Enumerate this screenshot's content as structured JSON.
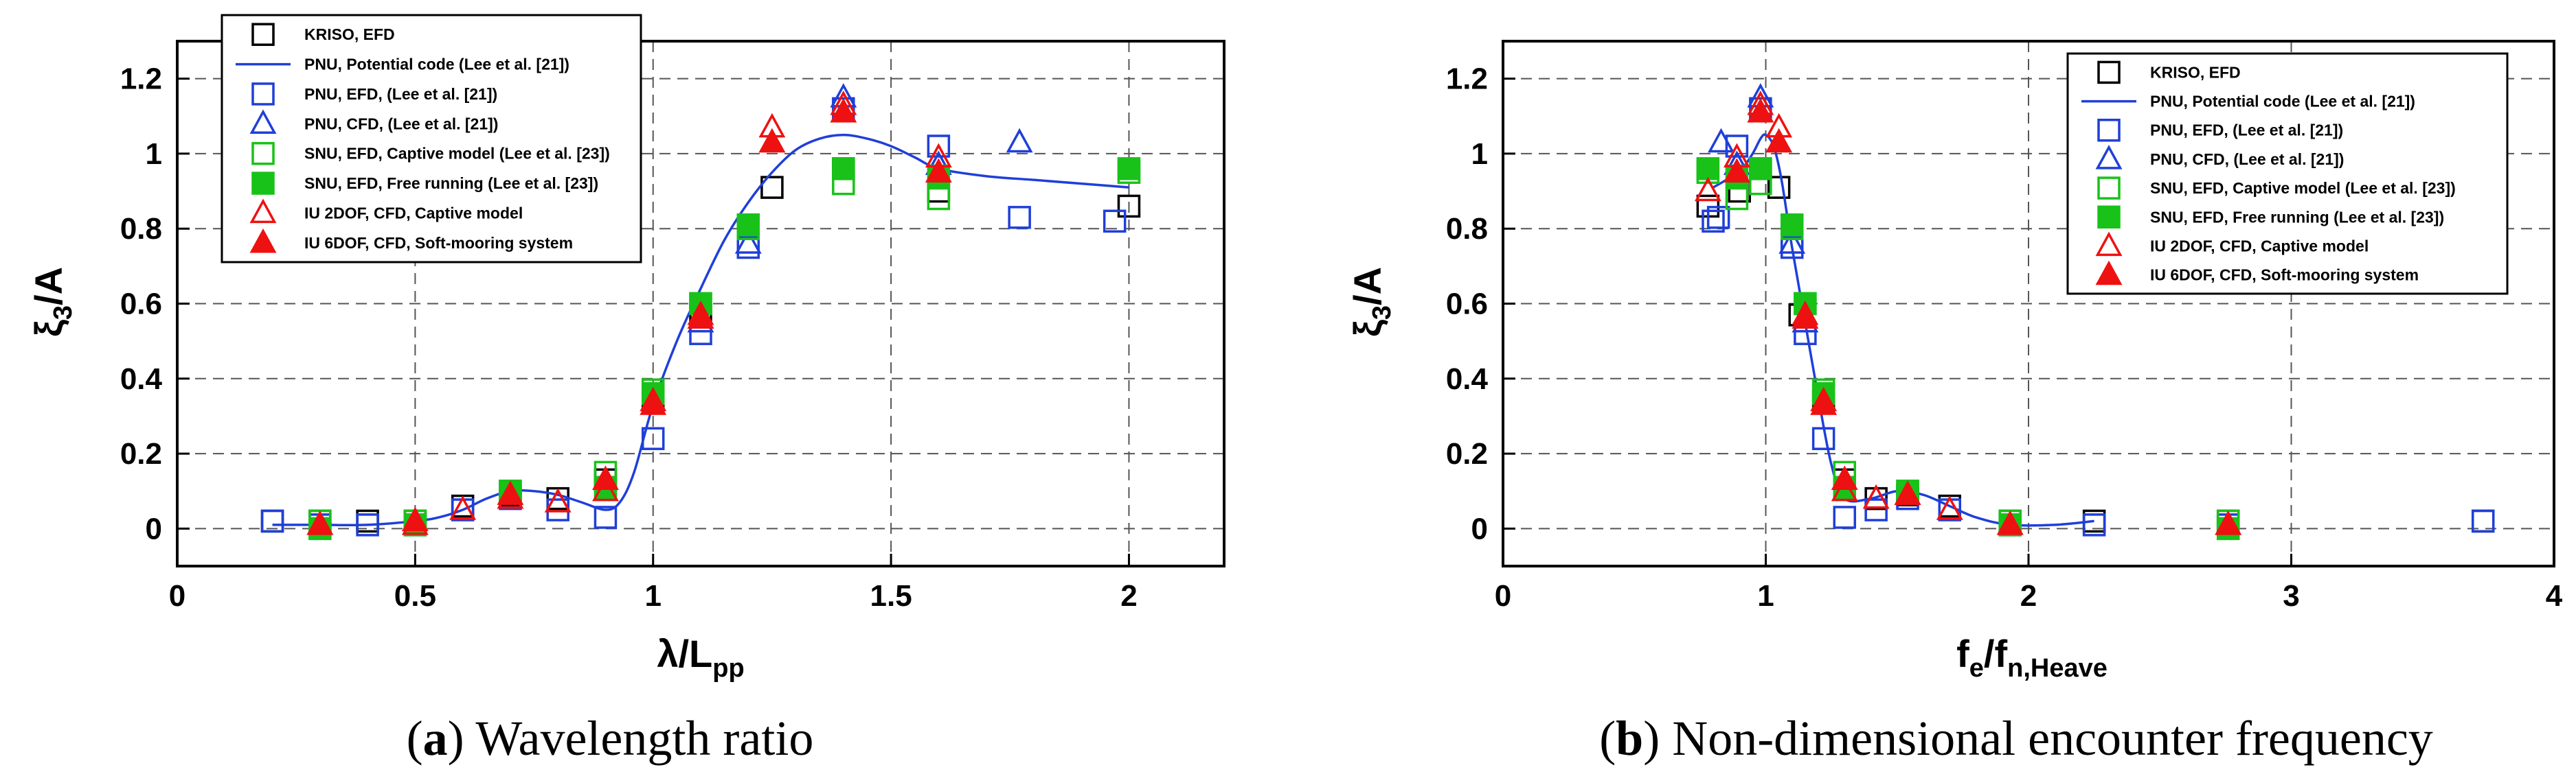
{
  "legend": [
    {
      "key": "kriso_efd",
      "label": "KRISO, EFD",
      "marker": "square-open",
      "color": "#000000"
    },
    {
      "key": "pnu_potential",
      "label": "PNU, Potential code (Lee et al. [21])",
      "marker": "line",
      "color": "#1f3fd9"
    },
    {
      "key": "pnu_efd",
      "label": "PNU, EFD, (Lee et al. [21])",
      "marker": "square-open",
      "color": "#1f3fd9"
    },
    {
      "key": "pnu_cfd",
      "label": "PNU, CFD, (Lee et al. [21])",
      "marker": "triangle-open",
      "color": "#1f3fd9"
    },
    {
      "key": "snu_captive",
      "label": "SNU, EFD, Captive model (Lee et al. [23])",
      "marker": "square-open",
      "color": "#19c219"
    },
    {
      "key": "snu_free",
      "label": "SNU, EFD, Free running (Lee et al. [23])",
      "marker": "square-filled",
      "color": "#19c219"
    },
    {
      "key": "iu_2dof",
      "label": "IU 2DOF, CFD, Captive model",
      "marker": "triangle-open",
      "color": "#ee1111"
    },
    {
      "key": "iu_6dof",
      "label": "IU 6DOF, CFD, Soft-mooring system",
      "marker": "triangle-filled",
      "color": "#ee1111"
    }
  ],
  "panels": [
    {
      "caption_letter": "a",
      "caption_text": " Wavelength ratio",
      "ylabel_main": "ξ",
      "ylabel_sub": "3",
      "ylabel_rest": "/A",
      "xlabel_main": "λ/L",
      "xlabel_sub": "pp",
      "xlabel_rest": ""
    },
    {
      "caption_letter": "b",
      "caption_text": " Non-dimensional encounter frequency",
      "ylabel_main": "ξ",
      "ylabel_sub": "3",
      "ylabel_rest": "/A",
      "xlabel_main": "f",
      "xlabel_sub": "e",
      "xlabel_rest": "/f",
      "xlabel_sub2": "n,Heave"
    }
  ],
  "chart_data": [
    {
      "type": "scatter",
      "xlim": [
        0,
        2.2
      ],
      "ylim": [
        -0.1,
        1.3
      ],
      "xticks": [
        0,
        0.5,
        1,
        1.5,
        2
      ],
      "xtick_labels": [
        "0",
        "0.5",
        "1",
        "1.5",
        "2"
      ],
      "yticks": [
        0,
        0.2,
        0.4,
        0.6,
        0.8,
        1.0,
        1.2
      ],
      "ytick_labels": [
        "0",
        "0.2",
        "0.4",
        "0.6",
        "0.8",
        "1",
        "1.2"
      ],
      "grid": true,
      "legend_position": "top-left",
      "series": [
        {
          "key": "kriso_efd",
          "x": [
            0.2,
            0.3,
            0.4,
            0.5,
            0.6,
            0.7,
            0.8,
            0.9,
            1.0,
            1.1,
            1.25,
            1.4,
            1.6,
            2.0
          ],
          "y": [
            0.02,
            0.02,
            0.02,
            0.02,
            0.06,
            0.09,
            0.08,
            0.13,
            0.34,
            0.57,
            0.91,
            0.96,
            0.9,
            0.86
          ]
        },
        {
          "key": "pnu_potential",
          "x": [
            0.2,
            0.3,
            0.4,
            0.5,
            0.55,
            0.6,
            0.65,
            0.7,
            0.75,
            0.8,
            0.85,
            0.9,
            0.93,
            0.96,
            1.0,
            1.05,
            1.1,
            1.15,
            1.2,
            1.25,
            1.3,
            1.35,
            1.4,
            1.45,
            1.5,
            1.55,
            1.6,
            1.7,
            1.8,
            1.9,
            2.0
          ],
          "y": [
            0.01,
            0.01,
            0.01,
            0.02,
            0.03,
            0.05,
            0.08,
            0.1,
            0.1,
            0.09,
            0.07,
            0.05,
            0.07,
            0.15,
            0.33,
            0.5,
            0.64,
            0.77,
            0.87,
            0.95,
            1.01,
            1.04,
            1.05,
            1.04,
            1.02,
            0.99,
            0.96,
            0.94,
            0.93,
            0.92,
            0.91
          ]
        },
        {
          "key": "pnu_efd",
          "x": [
            0.2,
            0.3,
            0.4,
            0.5,
            0.6,
            0.7,
            0.8,
            0.9,
            1.0,
            1.1,
            1.2,
            1.4,
            1.6,
            1.77,
            1.97
          ],
          "y": [
            0.02,
            0.01,
            0.01,
            0.01,
            0.05,
            0.08,
            0.05,
            0.03,
            0.24,
            0.52,
            0.75,
            1.12,
            1.02,
            0.83,
            0.82
          ]
        },
        {
          "key": "pnu_cfd",
          "x": [
            1.1,
            1.2,
            1.4,
            1.6,
            1.77
          ],
          "y": [
            0.55,
            0.76,
            1.15,
            0.97,
            1.03
          ]
        },
        {
          "key": "snu_captive",
          "x": [
            0.3,
            0.5,
            0.7,
            0.9,
            1.0,
            1.1,
            1.2,
            1.4,
            1.6,
            2.0
          ],
          "y": [
            0.02,
            0.02,
            0.1,
            0.15,
            0.37,
            0.6,
            0.8,
            0.92,
            0.88,
            0.95
          ]
        },
        {
          "key": "snu_free",
          "x": [
            0.3,
            0.5,
            0.7,
            0.9,
            1.0,
            1.1,
            1.2,
            1.4,
            1.6,
            2.0
          ],
          "y": [
            0.0,
            0.01,
            0.1,
            0.11,
            0.36,
            0.6,
            0.81,
            0.96,
            0.94,
            0.96
          ]
        },
        {
          "key": "iu_2dof",
          "x": [
            0.3,
            0.5,
            0.6,
            0.7,
            0.8,
            0.9,
            1.0,
            1.1,
            1.25,
            1.4,
            1.6
          ],
          "y": [
            0.01,
            0.01,
            0.05,
            0.08,
            0.07,
            0.1,
            0.34,
            0.57,
            1.07,
            1.13,
            0.99
          ]
        },
        {
          "key": "iu_6dof",
          "x": [
            0.3,
            0.5,
            0.7,
            0.9,
            1.0,
            1.1,
            1.25,
            1.4,
            1.6
          ],
          "y": [
            0.01,
            0.02,
            0.09,
            0.13,
            0.33,
            0.56,
            1.03,
            1.11,
            0.95
          ]
        }
      ]
    },
    {
      "type": "scatter",
      "xlim": [
        0,
        4
      ],
      "ylim": [
        -0.1,
        1.3
      ],
      "xticks": [
        0,
        1,
        2,
        3,
        4
      ],
      "xtick_labels": [
        "0",
        "1",
        "2",
        "3",
        "4"
      ],
      "yticks": [
        0,
        0.2,
        0.4,
        0.6,
        0.8,
        1.0,
        1.2
      ],
      "ytick_labels": [
        "0",
        "0.2",
        "0.4",
        "0.6",
        "0.8",
        "1",
        "1.2"
      ],
      "grid": true,
      "legend_position": "top-right",
      "series": [
        {
          "key": "kriso_efd",
          "x": [
            0.78,
            0.9,
            0.98,
            1.05,
            1.13,
            1.22,
            1.3,
            1.42,
            1.54,
            1.7,
            1.93,
            2.25,
            2.76,
            3.73
          ],
          "y": [
            0.86,
            0.9,
            0.96,
            0.91,
            0.57,
            0.34,
            0.13,
            0.08,
            0.09,
            0.06,
            0.02,
            0.02,
            0.02,
            0.02
          ]
        },
        {
          "key": "pnu_potential",
          "x": [
            0.8,
            0.85,
            0.9,
            0.95,
            0.98,
            1.0,
            1.03,
            1.06,
            1.1,
            1.15,
            1.2,
            1.25,
            1.3,
            1.4,
            1.5,
            1.6,
            1.7,
            1.8,
            1.93,
            2.1,
            2.25
          ],
          "y": [
            0.91,
            0.93,
            0.95,
            1.0,
            1.04,
            1.05,
            1.02,
            0.93,
            0.75,
            0.55,
            0.35,
            0.17,
            0.08,
            0.08,
            0.1,
            0.09,
            0.06,
            0.03,
            0.01,
            0.01,
            0.02
          ]
        },
        {
          "key": "pnu_efd",
          "x": [
            0.8,
            0.82,
            0.89,
            0.98,
            1.1,
            1.15,
            1.22,
            1.3,
            1.42,
            1.54,
            1.7,
            1.93,
            2.25,
            2.76,
            3.73
          ],
          "y": [
            0.82,
            0.83,
            1.02,
            1.12,
            0.75,
            0.52,
            0.24,
            0.03,
            0.05,
            0.08,
            0.05,
            0.01,
            0.01,
            0.01,
            0.02
          ]
        },
        {
          "key": "pnu_cfd",
          "x": [
            0.83,
            0.89,
            0.98,
            1.1,
            1.15
          ],
          "y": [
            1.03,
            0.97,
            1.15,
            0.76,
            0.55
          ]
        },
        {
          "key": "snu_captive",
          "x": [
            0.78,
            0.89,
            0.98,
            1.1,
            1.15,
            1.22,
            1.3,
            1.54,
            1.93,
            2.76
          ],
          "y": [
            0.95,
            0.88,
            0.92,
            0.8,
            0.6,
            0.37,
            0.15,
            0.1,
            0.02,
            0.02
          ]
        },
        {
          "key": "snu_free",
          "x": [
            0.78,
            0.89,
            0.98,
            1.1,
            1.15,
            1.22,
            1.3,
            1.54,
            1.93,
            2.76
          ],
          "y": [
            0.96,
            0.94,
            0.96,
            0.81,
            0.6,
            0.36,
            0.11,
            0.1,
            0.01,
            0.0
          ]
        },
        {
          "key": "iu_2dof",
          "x": [
            0.78,
            0.89,
            0.98,
            1.05,
            1.15,
            1.22,
            1.3,
            1.42,
            1.54,
            1.7,
            1.93,
            2.76
          ],
          "y": [
            0.9,
            0.99,
            1.13,
            1.07,
            0.57,
            0.34,
            0.1,
            0.08,
            0.09,
            0.05,
            0.01,
            0.01
          ]
        },
        {
          "key": "iu_6dof",
          "x": [
            0.89,
            0.98,
            1.05,
            1.15,
            1.22,
            1.3,
            1.54,
            1.93,
            2.76
          ],
          "y": [
            0.95,
            1.11,
            1.03,
            0.56,
            0.33,
            0.13,
            0.09,
            0.01,
            0.01
          ]
        }
      ]
    }
  ]
}
